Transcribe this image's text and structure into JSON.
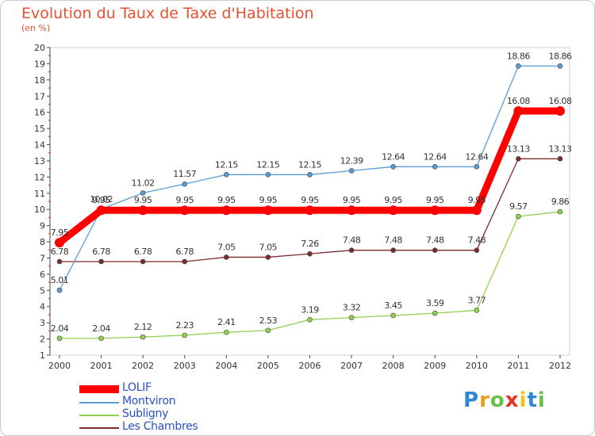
{
  "title": "Evolution du Taux de Taxe d'Habitation",
  "subtitle": "(en %)",
  "brand": {
    "text": "Proxiti",
    "letter_colors": [
      "#2f86d6",
      "#f29a1b",
      "#6cc04a",
      "#e5332a",
      "#f2c21b",
      "#2f86d6",
      "#6cc04a"
    ]
  },
  "chart_data": {
    "type": "line",
    "x": [
      "2000",
      "2001",
      "2002",
      "2003",
      "2004",
      "2005",
      "2006",
      "2007",
      "2008",
      "2009",
      "2010",
      "2011",
      "2012"
    ],
    "ylim": [
      1,
      20
    ],
    "yticks": [
      "1",
      "2",
      "3",
      "4",
      "5",
      "6",
      "7",
      "8",
      "9",
      "10",
      "11",
      "12",
      "13",
      "14",
      "15",
      "16",
      "17",
      "18",
      "19",
      "20"
    ],
    "grid": false,
    "legend_position": "bottom-left",
    "series": [
      {
        "name": "LOLIF",
        "color": "#ff0000",
        "values": [
          7.95,
          9.95,
          9.95,
          9.95,
          9.95,
          9.95,
          9.95,
          9.95,
          9.95,
          9.95,
          9.95,
          16.08,
          16.08
        ],
        "labels": [
          "7.95",
          "9.95",
          "9.95",
          "9.95",
          "9.95",
          "9.95",
          "9.95",
          "9.95",
          "9.95",
          "9.95",
          "9.95",
          "16.08",
          "16.08"
        ]
      },
      {
        "name": "Montviron",
        "color": "#5b9bd5",
        "values": [
          5.01,
          10.02,
          11.02,
          11.57,
          12.15,
          12.15,
          12.15,
          12.39,
          12.64,
          12.64,
          12.64,
          18.86,
          18.86
        ],
        "labels": [
          "5.01",
          "10.02",
          "11.02",
          "11.57",
          "12.15",
          "12.15",
          "12.15",
          "12.39",
          "12.64",
          "12.64",
          "12.64",
          "18.86",
          "18.86"
        ]
      },
      {
        "name": "Subligny",
        "color": "#92d050",
        "values": [
          2.04,
          2.04,
          2.12,
          2.23,
          2.41,
          2.53,
          3.19,
          3.32,
          3.45,
          3.59,
          3.77,
          9.57,
          9.86
        ],
        "labels": [
          "2.04",
          "2.04",
          "2.12",
          "2.23",
          "2.41",
          "2.53",
          "3.19",
          "3.32",
          "3.45",
          "3.59",
          "3.77",
          "9.57",
          "9.86"
        ]
      },
      {
        "name": "Les Chambres",
        "color": "#7b2c2c",
        "values": [
          6.78,
          6.78,
          6.78,
          6.78,
          7.05,
          7.05,
          7.26,
          7.48,
          7.48,
          7.48,
          7.48,
          13.13,
          13.13
        ],
        "labels": [
          "6.78",
          "6.78",
          "6.78",
          "6.78",
          "7.05",
          "7.05",
          "7.26",
          "7.48",
          "7.48",
          "7.48",
          "7.48",
          "13.13",
          "13.13"
        ]
      }
    ]
  }
}
